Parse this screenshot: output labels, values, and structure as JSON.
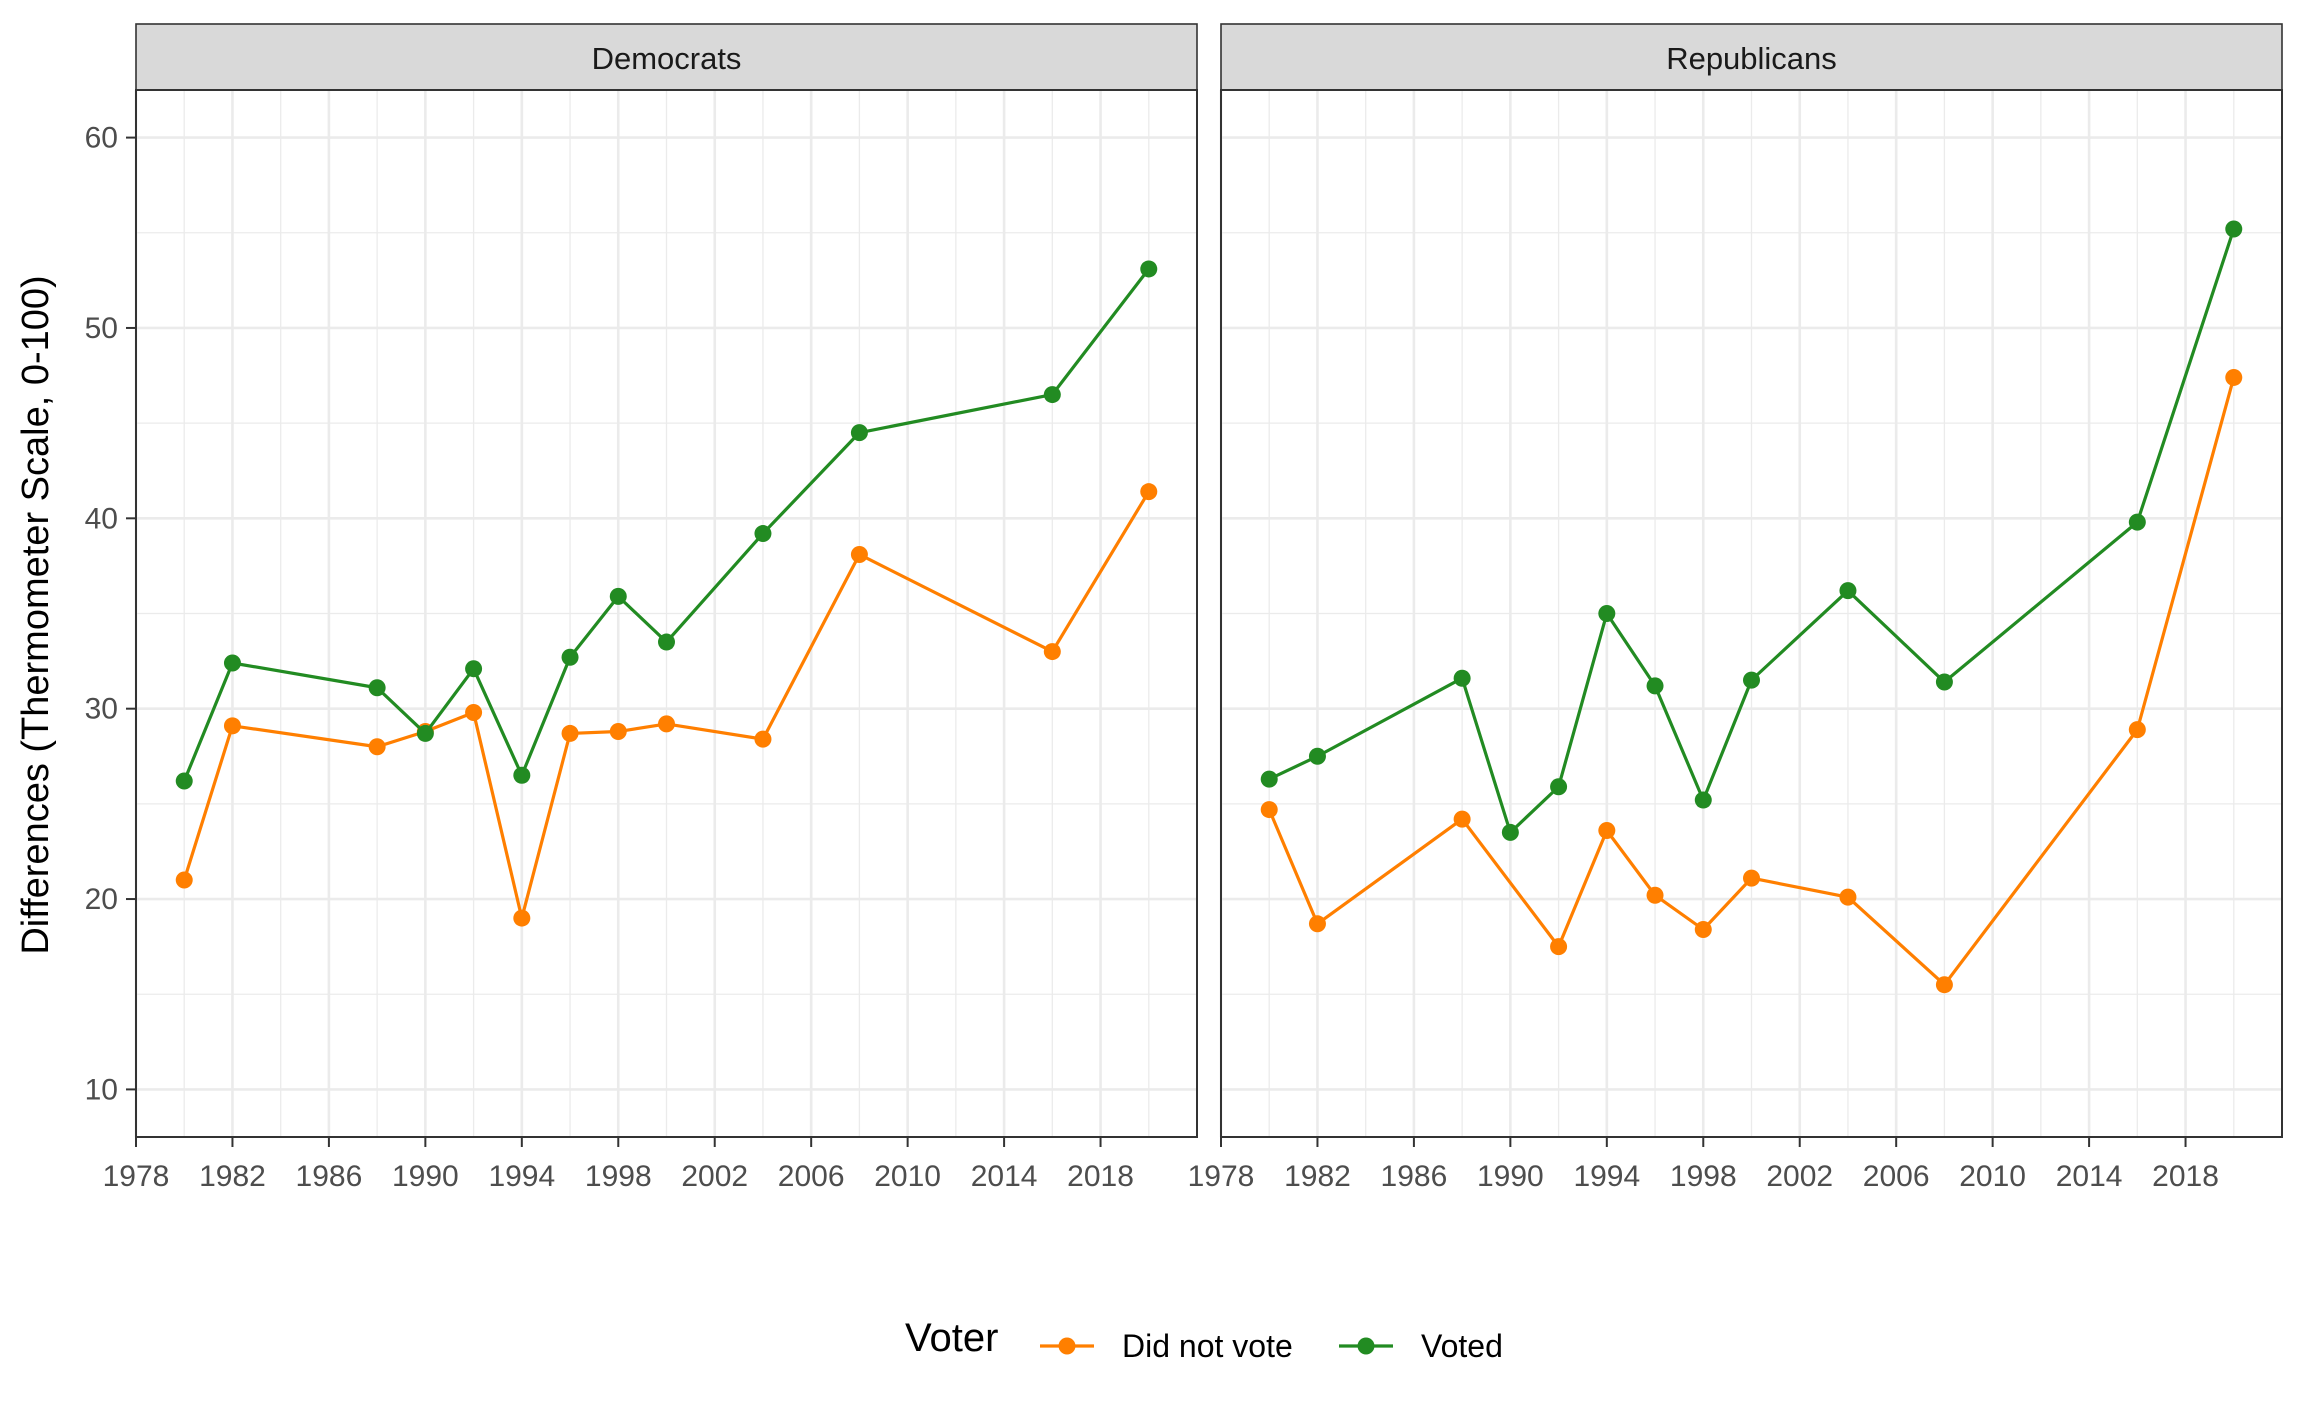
{
  "chart_data": {
    "type": "line",
    "facets": [
      "Democrats",
      "Republicans"
    ],
    "ylabel": "Differences (Thermometer Scale, 0-100)",
    "xlabel": "",
    "ylim": [
      7.5,
      62.5
    ],
    "yticks": [
      10,
      20,
      30,
      40,
      50,
      60
    ],
    "xlim": [
      1978,
      2022
    ],
    "xticks": [
      1978,
      1982,
      1986,
      1990,
      1994,
      1998,
      2002,
      2006,
      2010,
      2014,
      2018
    ],
    "legend": {
      "title": "Voter",
      "position": "bottom"
    },
    "series_styles": [
      {
        "name": "Did not vote",
        "color": "#FF7F00"
      },
      {
        "name": "Voted",
        "color": "#228B22"
      }
    ],
    "panels": [
      {
        "facet": "Democrats",
        "series": [
          {
            "name": "Did not vote",
            "x": [
              1980,
              1982,
              1988,
              1990,
              1992,
              1994,
              1996,
              1998,
              2000,
              2004,
              2008,
              2016,
              2020
            ],
            "values": [
              21.0,
              29.1,
              28.0,
              28.8,
              29.8,
              19.0,
              28.7,
              28.8,
              29.2,
              28.4,
              38.1,
              33.0,
              41.4
            ]
          },
          {
            "name": "Voted",
            "x": [
              1980,
              1982,
              1988,
              1990,
              1992,
              1994,
              1996,
              1998,
              2000,
              2004,
              2008,
              2016,
              2020
            ],
            "values": [
              26.2,
              32.4,
              31.1,
              28.7,
              32.1,
              26.5,
              32.7,
              35.9,
              33.5,
              39.2,
              44.5,
              46.5,
              53.1
            ]
          }
        ]
      },
      {
        "facet": "Republicans",
        "series": [
          {
            "name": "Did not vote",
            "x": [
              1980,
              1982,
              1988,
              1992,
              1994,
              1996,
              1998,
              2000,
              2004,
              2008,
              2016,
              2020
            ],
            "values": [
              24.7,
              18.7,
              24.2,
              17.5,
              23.6,
              20.2,
              18.4,
              21.1,
              20.1,
              15.5,
              28.9,
              47.4
            ]
          },
          {
            "name": "Voted",
            "x": [
              1980,
              1982,
              1988,
              1990,
              1992,
              1994,
              1996,
              1998,
              2000,
              2004,
              2008,
              2016,
              2020
            ],
            "values": [
              26.3,
              27.5,
              31.6,
              23.5,
              25.9,
              35.0,
              31.2,
              25.2,
              31.5,
              36.2,
              31.4,
              39.8,
              55.2
            ]
          }
        ]
      }
    ]
  }
}
